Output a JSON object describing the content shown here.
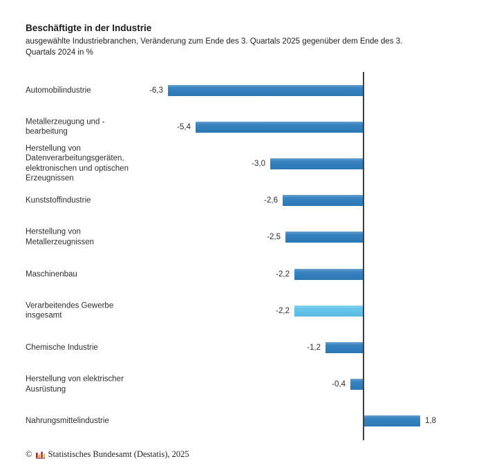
{
  "chart_data": {
    "type": "bar",
    "orientation": "horizontal",
    "title": "Beschäftigte in der Industrie",
    "subtitle": "ausgewählte Industriebranchen, Veränderung zum Ende des 3. Quartals 2025 gegenüber dem Ende des 3. Quartals 2024 in %",
    "unit": "%",
    "categories": [
      "Automobilindustrie",
      "Metallerzeugung und -\nbearbeitung",
      "Herstellung von\nDatenverarbeitungsgeräten,\nelektronischen und optischen\nErzeugnissen",
      "Kunststoffindustrie",
      "Herstellung von\nMetallerzeugnissen",
      "Maschinenbau",
      "Verarbeitendes Gewerbe\ninsgesamt",
      "Chemische Industrie",
      "Herstellung von elektrischer\nAusrüstung",
      "Nahrungsmittelindustrie"
    ],
    "values": [
      -6.3,
      -5.4,
      -3.0,
      -2.6,
      -2.5,
      -2.2,
      -2.2,
      -1.2,
      -0.4,
      1.8
    ],
    "value_labels": [
      "-6,3",
      "-5,4",
      "-3,0",
      "-2,6",
      "-2,5",
      "-2,2",
      "-2,2",
      "-1,2",
      "-0,4",
      "1,8"
    ],
    "highlight_index": 6,
    "highlighted_category": "Verarbeitendes Gewerbe insgesamt",
    "colors": {
      "bar": "#2d7cbc",
      "highlight": "#5ec2ea",
      "axis": "#3f3f3f"
    },
    "xlim": [
      -7,
      3
    ],
    "grid": false,
    "legend": false,
    "value_labels_position": "outside-end"
  },
  "footer": {
    "copyright_symbol": "©",
    "source": "Statistisches Bundesamt (Destatis), 2025"
  }
}
